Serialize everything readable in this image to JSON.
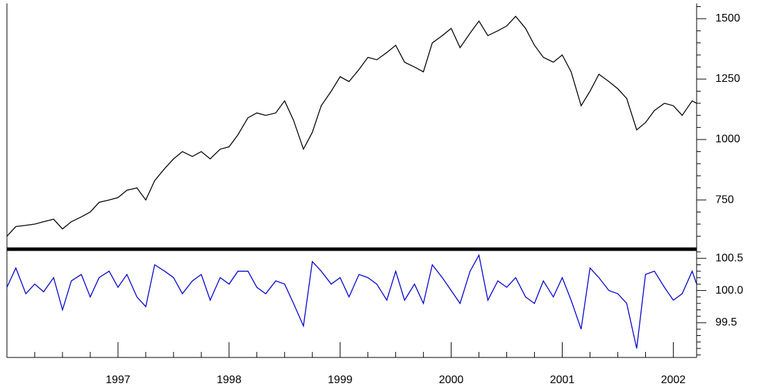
{
  "chart_data": [
    {
      "type": "line",
      "x": [
        1996.0,
        1996.08,
        1996.17,
        1996.25,
        1996.33,
        1996.42,
        1996.5,
        1996.58,
        1996.67,
        1996.75,
        1996.83,
        1996.92,
        1997.0,
        1997.08,
        1997.17,
        1997.25,
        1997.33,
        1997.42,
        1997.5,
        1997.58,
        1997.67,
        1997.75,
        1997.83,
        1997.92,
        1998.0,
        1998.08,
        1998.17,
        1998.25,
        1998.33,
        1998.42,
        1998.5,
        1998.58,
        1998.67,
        1998.75,
        1998.83,
        1998.92,
        1999.0,
        1999.08,
        1999.17,
        1999.25,
        1999.33,
        1999.42,
        1999.5,
        1999.58,
        1999.67,
        1999.75,
        1999.83,
        1999.92,
        2000.0,
        2000.08,
        2000.17,
        2000.25,
        2000.33,
        2000.42,
        2000.5,
        2000.58,
        2000.67,
        2000.75,
        2000.83,
        2000.92,
        2001.0,
        2001.08,
        2001.17,
        2001.25,
        2001.33,
        2001.42,
        2001.5,
        2001.58,
        2001.67,
        2001.75,
        2001.83,
        2001.92,
        2002.0,
        2002.08,
        2002.17,
        2002.21
      ],
      "series": [
        {
          "color": "#000000",
          "values": [
            600,
            640,
            645,
            650,
            660,
            670,
            630,
            660,
            680,
            700,
            740,
            750,
            760,
            790,
            800,
            750,
            830,
            880,
            920,
            950,
            930,
            950,
            920,
            960,
            970,
            1020,
            1090,
            1110,
            1100,
            1110,
            1160,
            1080,
            960,
            1030,
            1140,
            1200,
            1260,
            1240,
            1290,
            1340,
            1330,
            1360,
            1390,
            1320,
            1300,
            1280,
            1400,
            1430,
            1460,
            1380,
            1440,
            1490,
            1430,
            1450,
            1470,
            1510,
            1460,
            1390,
            1340,
            1320,
            1350,
            1280,
            1140,
            1200,
            1270,
            1240,
            1210,
            1170,
            1040,
            1070,
            1120,
            1150,
            1140,
            1100,
            1160,
            1150
          ]
        }
      ],
      "xlim": [
        1996.0,
        2002.21
      ],
      "ylim": [
        552,
        1563
      ],
      "yticks": [
        750,
        1000,
        1250,
        1500
      ],
      "yminorticks": [
        600,
        650,
        700,
        800,
        850,
        900,
        950,
        1050,
        1100,
        1150,
        1200,
        1300,
        1350,
        1400,
        1450,
        1550
      ]
    },
    {
      "type": "line",
      "x": [
        1996.0,
        1996.08,
        1996.17,
        1996.25,
        1996.33,
        1996.42,
        1996.5,
        1996.58,
        1996.67,
        1996.75,
        1996.83,
        1996.92,
        1997.0,
        1997.08,
        1997.17,
        1997.25,
        1997.33,
        1997.42,
        1997.5,
        1997.58,
        1997.67,
        1997.75,
        1997.83,
        1997.92,
        1998.0,
        1998.08,
        1998.17,
        1998.25,
        1998.33,
        1998.42,
        1998.5,
        1998.58,
        1998.67,
        1998.75,
        1998.83,
        1998.92,
        1999.0,
        1999.08,
        1999.17,
        1999.25,
        1999.33,
        1999.42,
        1999.5,
        1999.58,
        1999.67,
        1999.75,
        1999.83,
        1999.92,
        2000.0,
        2000.08,
        2000.17,
        2000.25,
        2000.33,
        2000.42,
        2000.5,
        2000.58,
        2000.67,
        2000.75,
        2000.83,
        2000.92,
        2001.0,
        2001.08,
        2001.17,
        2001.25,
        2001.33,
        2001.42,
        2001.5,
        2001.58,
        2001.67,
        2001.75,
        2001.83,
        2001.92,
        2002.0,
        2002.08,
        2002.17,
        2002.21
      ],
      "series": [
        {
          "color": "#0000cc",
          "values": [
            100.05,
            100.35,
            99.95,
            100.1,
            99.98,
            100.2,
            99.7,
            100.15,
            100.25,
            99.9,
            100.2,
            100.3,
            100.05,
            100.25,
            99.9,
            99.75,
            100.4,
            100.3,
            100.2,
            99.95,
            100.15,
            100.25,
            99.85,
            100.2,
            100.1,
            100.3,
            100.3,
            100.05,
            99.95,
            100.15,
            100.1,
            99.8,
            99.45,
            100.45,
            100.3,
            100.1,
            100.2,
            99.9,
            100.25,
            100.2,
            100.1,
            99.85,
            100.3,
            99.85,
            100.1,
            99.8,
            100.4,
            100.2,
            100.0,
            99.8,
            100.3,
            100.55,
            99.85,
            100.15,
            100.05,
            100.2,
            99.9,
            99.8,
            100.15,
            99.9,
            100.2,
            99.85,
            99.4,
            100.35,
            100.2,
            100.0,
            99.95,
            99.8,
            99.1,
            100.25,
            100.3,
            100.05,
            99.85,
            99.95,
            100.3,
            100.1
          ]
        }
      ],
      "xlim": [
        1996.0,
        2002.21
      ],
      "xticks": [
        1997,
        1998,
        1999,
        2000,
        2001,
        2002
      ],
      "xminorticks": [
        1996.25,
        1996.5,
        1996.75,
        1997.25,
        1997.5,
        1997.75,
        1998.25,
        1998.5,
        1998.75,
        1999.25,
        1999.5,
        1999.75,
        2000.25,
        2000.5,
        2000.75,
        2001.25,
        2001.5,
        2001.75
      ],
      "ylim": [
        98.96,
        100.61
      ],
      "yticks": [
        {
          "value": 99.5,
          "label": "99.5"
        },
        {
          "value": 100.0,
          "label": "100.0"
        },
        {
          "value": 100.5,
          "label": "100.5"
        }
      ],
      "yminorticks": [
        99.0,
        99.1,
        99.2,
        99.3,
        99.4,
        99.6,
        99.7,
        99.8,
        99.9,
        100.1,
        100.2,
        100.3,
        100.4,
        100.6
      ]
    }
  ]
}
